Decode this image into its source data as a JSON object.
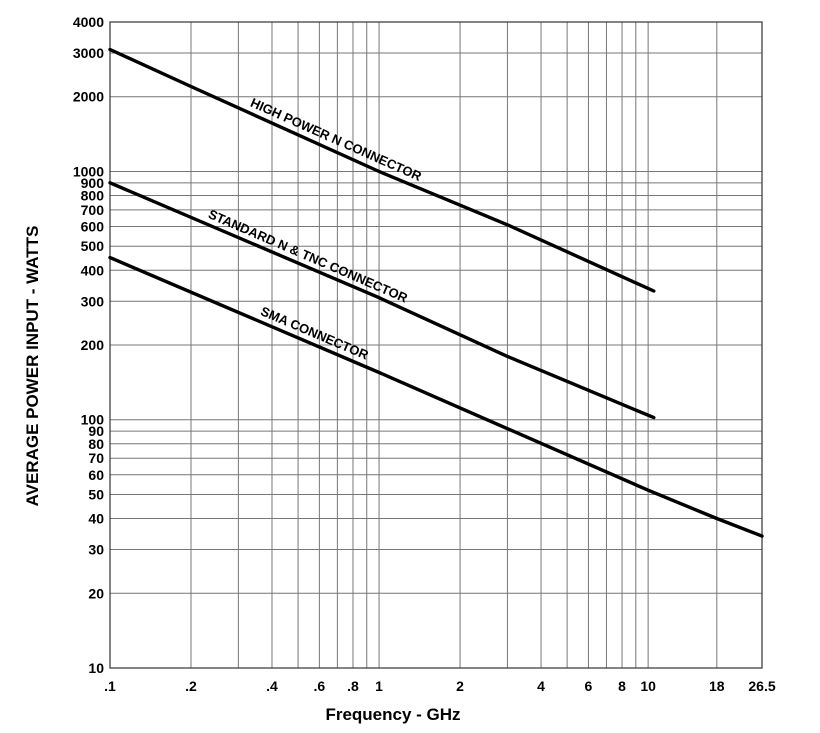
{
  "chart_data": {
    "type": "line",
    "title": "",
    "xlabel": "Frequency - GHz",
    "ylabel": "AVERAGE POWER INPUT - WATTS",
    "x_scale": "log",
    "y_scale": "log",
    "xlim": [
      0.1,
      26.5
    ],
    "ylim": [
      10,
      4000
    ],
    "grid": true,
    "x_ticks": [
      {
        "value": 0.1,
        "label": ".1"
      },
      {
        "value": 0.2,
        "label": ".2"
      },
      {
        "value": 0.4,
        "label": ".4"
      },
      {
        "value": 0.6,
        "label": ".6"
      },
      {
        "value": 0.8,
        "label": ".8"
      },
      {
        "value": 1,
        "label": "1"
      },
      {
        "value": 2,
        "label": "2"
      },
      {
        "value": 4,
        "label": "4"
      },
      {
        "value": 6,
        "label": "6"
      },
      {
        "value": 8,
        "label": "8"
      },
      {
        "value": 10,
        "label": "10"
      },
      {
        "value": 18,
        "label": "18"
      },
      {
        "value": 26.5,
        "label": "26.5"
      }
    ],
    "x_gridlines": [
      0.1,
      0.2,
      0.3,
      0.4,
      0.5,
      0.6,
      0.7,
      0.8,
      0.9,
      1,
      2,
      3,
      4,
      5,
      6,
      7,
      8,
      9,
      10,
      18,
      26.5
    ],
    "y_ticks": [
      {
        "value": 4000,
        "label": "4000"
      },
      {
        "value": 3000,
        "label": "3000"
      },
      {
        "value": 2000,
        "label": "2000"
      },
      {
        "value": 1000,
        "label": "1000"
      },
      {
        "value": 900,
        "label": "900"
      },
      {
        "value": 800,
        "label": "800"
      },
      {
        "value": 700,
        "label": "700"
      },
      {
        "value": 600,
        "label": "600"
      },
      {
        "value": 500,
        "label": "500"
      },
      {
        "value": 400,
        "label": "400"
      },
      {
        "value": 300,
        "label": "300"
      },
      {
        "value": 200,
        "label": "200"
      },
      {
        "value": 100,
        "label": "100"
      },
      {
        "value": 90,
        "label": "90"
      },
      {
        "value": 80,
        "label": "80"
      },
      {
        "value": 70,
        "label": "70"
      },
      {
        "value": 60,
        "label": "60"
      },
      {
        "value": 50,
        "label": "50"
      },
      {
        "value": 40,
        "label": "40"
      },
      {
        "value": 30,
        "label": "30"
      },
      {
        "value": 20,
        "label": "20"
      },
      {
        "value": 10,
        "label": "10"
      }
    ],
    "series": [
      {
        "name": "HIGH POWER N CONNECTOR",
        "x": [
          0.1,
          0.2,
          1,
          3,
          10.5
        ],
        "y": [
          3100,
          2200,
          1000,
          610,
          330
        ]
      },
      {
        "name": "STANDARD N & TNC CONNECTOR",
        "x": [
          0.1,
          1,
          3,
          10.5
        ],
        "y": [
          900,
          310,
          180,
          102
        ]
      },
      {
        "name": "SMA CONNECTOR",
        "x": [
          0.1,
          1,
          10,
          18,
          26.5
        ],
        "y": [
          450,
          155,
          52,
          40,
          34
        ]
      }
    ]
  },
  "colors": {
    "curve": "#000000",
    "grid": "#777777",
    "background": "#ffffff"
  }
}
